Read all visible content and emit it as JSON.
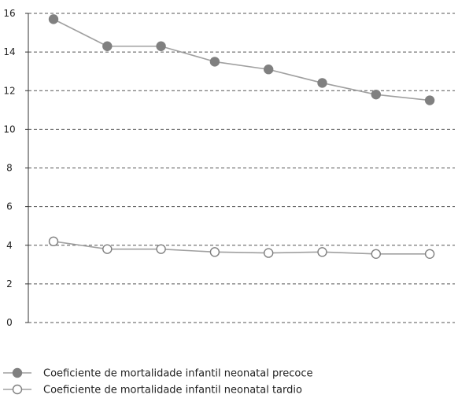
{
  "chart_data": {
    "type": "line",
    "title": "",
    "xlabel": "",
    "ylabel": "",
    "ylim": [
      0,
      16
    ],
    "yticks": [
      0,
      2,
      4,
      6,
      8,
      10,
      12,
      14,
      16
    ],
    "x": [
      1,
      2,
      3,
      4,
      5,
      6,
      7,
      8
    ],
    "grid": "horizontal dashed",
    "legend_position": "bottom-left",
    "series": [
      {
        "name": "Coeficiente de mortalidade infantil neonatal precoce",
        "values": [
          15.7,
          14.3,
          14.3,
          13.5,
          13.1,
          12.4,
          11.8,
          11.5
        ],
        "line_color": "#a0a0a0",
        "marker_fill": "#808080",
        "marker_stroke": "#808080"
      },
      {
        "name": "Coeficiente de mortalidade infantil neonatal tardio",
        "values": [
          4.2,
          3.8,
          3.8,
          3.65,
          3.6,
          3.65,
          3.55,
          3.55
        ],
        "line_color": "#a0a0a0",
        "marker_fill": "#ffffff",
        "marker_stroke": "#808080"
      }
    ]
  }
}
